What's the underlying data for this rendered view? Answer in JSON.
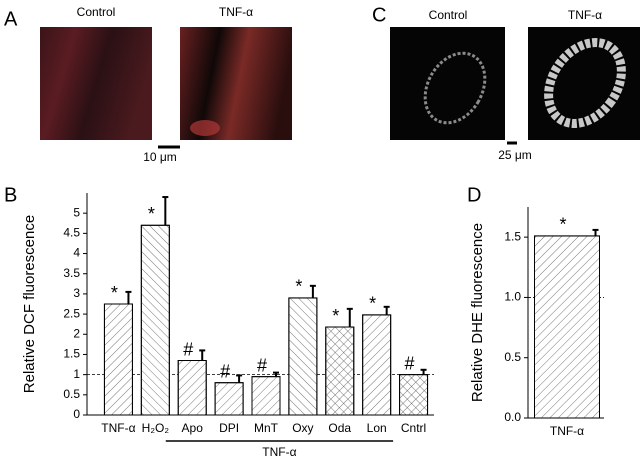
{
  "figure": {
    "panel_labels": [
      "A",
      "B",
      "C",
      "D"
    ],
    "image_labels_a": [
      "Control",
      "TNF-α"
    ],
    "image_labels_c": [
      "Control",
      "TNF-α"
    ],
    "scale_bars": [
      "10 μm",
      "25 μm"
    ]
  },
  "chart_data": [
    {
      "type": "bar",
      "ylabel": "Relative DCF fluorescence",
      "categories": [
        "TNF-α",
        "H₂O₂",
        "Apo",
        "DPI",
        "MnT",
        "Oxy",
        "Oda",
        "Lon",
        "Cntrl"
      ],
      "values": [
        2.75,
        4.7,
        1.35,
        0.8,
        0.95,
        2.9,
        2.18,
        2.48,
        1.0
      ],
      "errors": [
        0.3,
        0.7,
        0.25,
        0.18,
        0.1,
        0.3,
        0.45,
        0.2,
        0.12
      ],
      "markers": [
        "*",
        "*",
        "#",
        "#",
        "#",
        "*",
        "*",
        "*",
        "#"
      ],
      "group_label": "TNF-α",
      "reference_line": 1,
      "ylim": [
        0,
        5.5
      ],
      "yticks": [
        0,
        0.5,
        1,
        1.5,
        2,
        2.5,
        3,
        3.5,
        4,
        4.5,
        5
      ]
    },
    {
      "type": "bar",
      "ylabel": "Relative DHE fluorescence",
      "categories": [
        "TNF-α"
      ],
      "values": [
        1.51
      ],
      "errors": [
        0.05
      ],
      "markers": [
        "*"
      ],
      "reference_line": 1,
      "ylim": [
        0,
        1.75
      ],
      "yticks": [
        {
          "value": 0,
          "label": "0.0"
        },
        {
          "value": 0.5,
          "label": "0.5"
        },
        {
          "value": 1,
          "label": "1.0"
        },
        {
          "value": 1.5,
          "label": "1.5"
        }
      ]
    }
  ]
}
